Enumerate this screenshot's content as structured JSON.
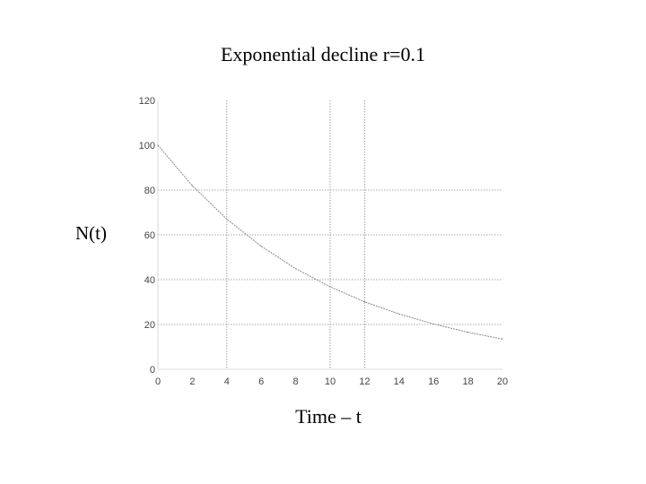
{
  "chart_data": {
    "type": "line",
    "title": "Exponential decline r=0.1",
    "xlabel": "Time – t",
    "ylabel": "N(t)",
    "xlim": [
      0,
      20
    ],
    "ylim": [
      0,
      120
    ],
    "x_ticks": [
      "0",
      "2",
      "4",
      "6",
      "8",
      "10",
      "12",
      "14",
      "16",
      "18",
      "20"
    ],
    "y_ticks": [
      "0",
      "20",
      "40",
      "60",
      "80",
      "100",
      "120"
    ],
    "grid": true,
    "vertical_gridlines_at": [
      4,
      10,
      12
    ],
    "horizontal_gridlines_at": [
      20,
      40,
      60,
      80
    ],
    "x": [
      0,
      2,
      4,
      6,
      8,
      10,
      12,
      14,
      16,
      18,
      20
    ],
    "series": [
      {
        "values": [
          100,
          81.9,
          67.0,
          54.9,
          44.9,
          36.8,
          30.1,
          24.7,
          20.2,
          16.5,
          13.5
        ]
      }
    ],
    "colors": {
      "line": "#8a8a8a",
      "grid": "#8f8f8f",
      "axis": "#444444"
    }
  }
}
